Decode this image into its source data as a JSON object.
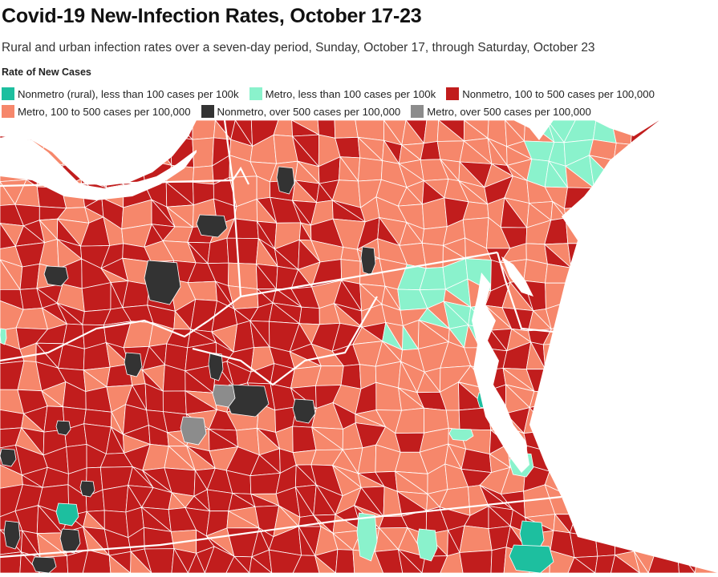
{
  "header": {
    "title": "Covid-19 New-Infection Rates, October 17-23",
    "subtitle": "Rural and urban infection rates over a seven-day period, Sunday, October 17, through Saturday, October 23"
  },
  "legend": {
    "title": "Rate of New Cases",
    "items": [
      {
        "label": "Nonmetro (rural), less than 100 cases per 100k",
        "color": "#1dbf9f"
      },
      {
        "label": "Metro, less than 100 cases per 100k",
        "color": "#8af2cc"
      },
      {
        "label": "Nonmetro, 100 to 500 cases per 100,000",
        "color": "#c11d1d"
      },
      {
        "label": "Metro, 100 to 500 cases per 100,000",
        "color": "#f6876b"
      },
      {
        "label": "Nonmetro, over 500 cases per 100,000",
        "color": "#333333"
      },
      {
        "label": "Metro, over 500 cases per 100,000",
        "color": "#8c8c8c"
      }
    ]
  },
  "map": {
    "water_color": "#ffffff",
    "border_color": "#ffffff",
    "region": "Mid-Atlantic United States county map"
  }
}
